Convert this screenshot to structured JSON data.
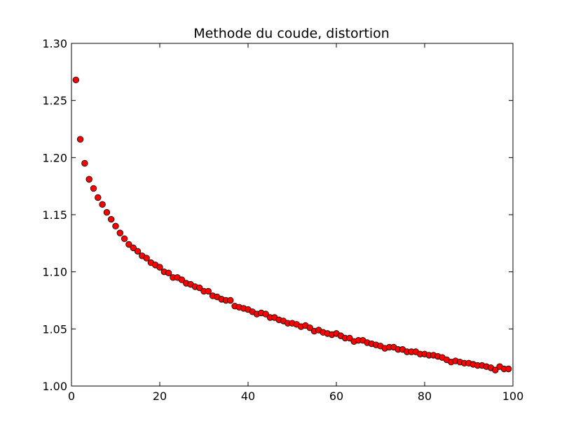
{
  "chart_data": {
    "type": "scatter",
    "title": "Methode du coude, distortion",
    "xlabel": "",
    "ylabel": "",
    "xlim": [
      0,
      100
    ],
    "ylim": [
      1.0,
      1.3
    ],
    "x_ticks": [
      0,
      20,
      40,
      60,
      80,
      100
    ],
    "x_tick_labels": [
      "0",
      "20",
      "40",
      "60",
      "80",
      "100"
    ],
    "y_ticks": [
      1.0,
      1.05,
      1.1,
      1.15,
      1.2,
      1.25,
      1.3
    ],
    "y_tick_labels": [
      "1.00",
      "1.05",
      "1.10",
      "1.15",
      "1.20",
      "1.25",
      "1.30"
    ],
    "grid": false,
    "marker_color": "#ff0000",
    "marker_edge_color": "#000000",
    "series": [
      {
        "x": [
          1,
          2,
          3,
          4,
          5,
          6,
          7,
          8,
          9,
          10,
          11,
          12,
          13,
          14,
          15,
          16,
          17,
          18,
          19,
          20,
          21,
          22,
          23,
          24,
          25,
          26,
          27,
          28,
          29,
          30,
          31,
          32,
          33,
          34,
          35,
          36,
          37,
          38,
          39,
          40,
          41,
          42,
          43,
          44,
          45,
          46,
          47,
          48,
          49,
          50,
          51,
          52,
          53,
          54,
          55,
          56,
          57,
          58,
          59,
          60,
          61,
          62,
          63,
          64,
          65,
          66,
          67,
          68,
          69,
          70,
          71,
          72,
          73,
          74,
          75,
          76,
          77,
          78,
          79,
          80,
          81,
          82,
          83,
          84,
          85,
          86,
          87,
          88,
          89,
          90,
          91,
          92,
          93,
          94,
          95,
          96,
          97,
          98,
          99
        ],
        "y": [
          1.268,
          1.216,
          1.195,
          1.181,
          1.173,
          1.165,
          1.159,
          1.152,
          1.146,
          1.14,
          1.134,
          1.129,
          1.124,
          1.121,
          1.118,
          1.114,
          1.112,
          1.108,
          1.106,
          1.104,
          1.1,
          1.099,
          1.095,
          1.095,
          1.093,
          1.09,
          1.089,
          1.087,
          1.086,
          1.083,
          1.083,
          1.079,
          1.078,
          1.076,
          1.075,
          1.075,
          1.07,
          1.069,
          1.068,
          1.067,
          1.065,
          1.063,
          1.064,
          1.063,
          1.06,
          1.06,
          1.058,
          1.057,
          1.055,
          1.055,
          1.054,
          1.052,
          1.053,
          1.051,
          1.048,
          1.049,
          1.047,
          1.046,
          1.045,
          1.046,
          1.044,
          1.042,
          1.042,
          1.039,
          1.04,
          1.04,
          1.038,
          1.037,
          1.036,
          1.035,
          1.033,
          1.034,
          1.034,
          1.032,
          1.032,
          1.03,
          1.03,
          1.03,
          1.028,
          1.028,
          1.027,
          1.027,
          1.026,
          1.025,
          1.023,
          1.021,
          1.022,
          1.021,
          1.02,
          1.02,
          1.019,
          1.018,
          1.018,
          1.017,
          1.016,
          1.014,
          1.017,
          1.015,
          1.015
        ]
      }
    ]
  }
}
